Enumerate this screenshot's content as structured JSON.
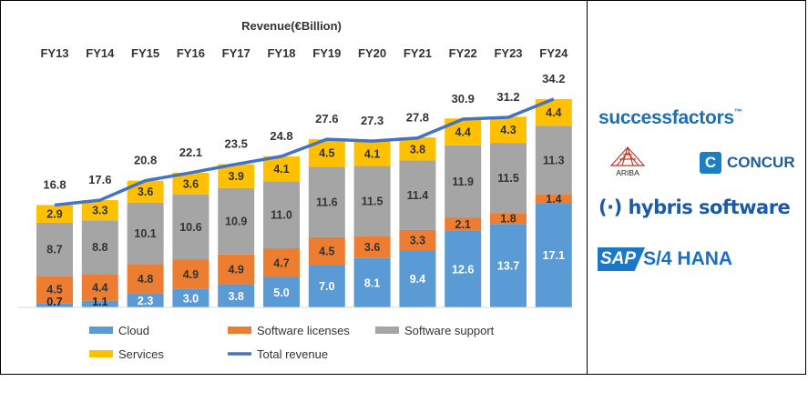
{
  "chart_data": {
    "type": "bar",
    "stacked": true,
    "title": "Revenue(€Billion)",
    "categories": [
      "FY13",
      "FY14",
      "FY15",
      "FY16",
      "FY17",
      "FY18",
      "FY19",
      "FY20",
      "FY21",
      "FY22",
      "FY23",
      "FY24"
    ],
    "series": [
      {
        "name": "Cloud",
        "color": "#5b9bd5",
        "values": [
          0.7,
          1.1,
          2.3,
          3.0,
          3.8,
          5.0,
          7.0,
          8.1,
          9.4,
          12.6,
          13.7,
          17.1
        ]
      },
      {
        "name": "Software licenses",
        "color": "#ed7d31",
        "values": [
          4.5,
          4.4,
          4.8,
          4.9,
          4.9,
          4.7,
          4.5,
          3.6,
          3.3,
          2.1,
          1.8,
          1.4
        ]
      },
      {
        "name": "Software support",
        "color": "#a5a5a5",
        "values": [
          8.7,
          8.8,
          10.1,
          10.6,
          10.9,
          11.0,
          11.6,
          11.5,
          11.4,
          11.9,
          11.5,
          11.3
        ]
      },
      {
        "name": "Services",
        "color": "#ffc000",
        "values": [
          2.9,
          3.3,
          3.6,
          3.6,
          3.9,
          4.1,
          4.5,
          4.1,
          3.8,
          4.4,
          4.3,
          4.4
        ]
      }
    ],
    "line_series": {
      "name": "Total revenue",
      "color": "#4472c4",
      "values": [
        16.8,
        17.6,
        20.8,
        22.1,
        23.5,
        24.8,
        27.6,
        27.3,
        27.8,
        30.9,
        31.2,
        34.2
      ]
    },
    "total_labels": [
      "16.8",
      "17.6",
      "20.8",
      "22.1",
      "23.5",
      "24.8",
      "27.6",
      "27.3",
      "27.8",
      "30.9",
      "31.2",
      "34.2"
    ],
    "ylim": [
      0,
      35
    ],
    "legend_position": "bottom"
  },
  "logos": {
    "successfactors": "successfactors",
    "successfactors_tm": "™",
    "ariba": "ARIBA",
    "concur_mark": "C",
    "concur": "CONCUR",
    "hybris": "(·) hybris software",
    "sap": "SAP",
    "s4hana": "S/4 HANA"
  }
}
